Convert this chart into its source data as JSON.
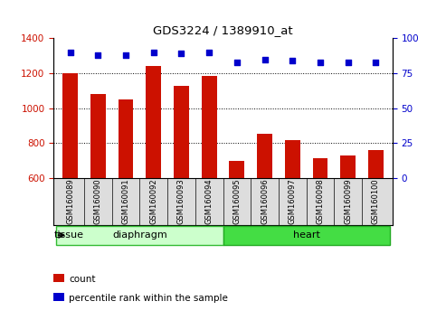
{
  "title": "GDS3224 / 1389910_at",
  "samples": [
    "GSM160089",
    "GSM160090",
    "GSM160091",
    "GSM160092",
    "GSM160093",
    "GSM160094",
    "GSM160095",
    "GSM160096",
    "GSM160097",
    "GSM160098",
    "GSM160099",
    "GSM160100"
  ],
  "counts": [
    1200,
    1080,
    1050,
    1240,
    1130,
    1185,
    700,
    855,
    820,
    715,
    730,
    760
  ],
  "percentiles": [
    90,
    88,
    88,
    90,
    89,
    90,
    83,
    85,
    84,
    83,
    83,
    83
  ],
  "ylim_left": [
    600,
    1400
  ],
  "ylim_right": [
    0,
    100
  ],
  "yticks_left": [
    600,
    800,
    1000,
    1200,
    1400
  ],
  "yticks_right": [
    0,
    25,
    50,
    75,
    100
  ],
  "bar_color": "#cc1100",
  "dot_color": "#0000cc",
  "gridline_values": [
    800,
    1000,
    1200
  ],
  "groups": [
    {
      "label": "diaphragm",
      "start": 0,
      "end": 6,
      "color": "#ccffcc",
      "border_color": "#33bb33"
    },
    {
      "label": "heart",
      "start": 6,
      "end": 12,
      "color": "#44dd44",
      "border_color": "#22aa22"
    }
  ],
  "legend_items": [
    {
      "label": "count",
      "color": "#cc1100"
    },
    {
      "label": "percentile rank within the sample",
      "color": "#0000cc"
    }
  ],
  "tissue_label": "tissue",
  "xticklabel_bg": "#dddddd",
  "background_color": "#ffffff"
}
